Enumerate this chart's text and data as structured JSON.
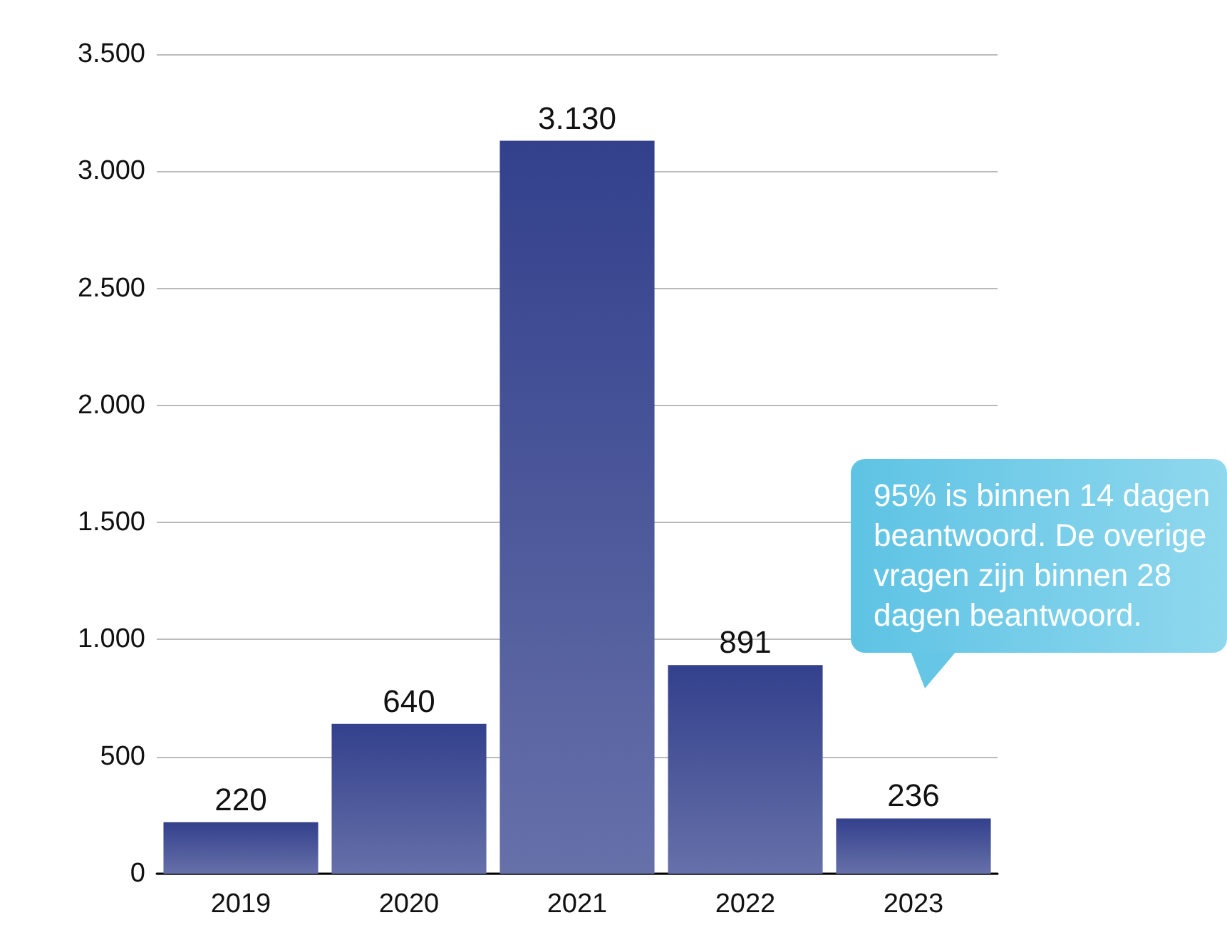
{
  "chart_data": {
    "type": "bar",
    "categories": [
      "2019",
      "2020",
      "2021",
      "2022",
      "2023"
    ],
    "values": [
      220,
      640,
      3130,
      891,
      236
    ],
    "value_labels": [
      "220",
      "640",
      "3.130",
      "891",
      "236"
    ],
    "color": "#33408c",
    "ylim": [
      0,
      3500
    ],
    "yticks": [
      {
        "value": 0,
        "label": "0"
      },
      {
        "value": 500,
        "label": "500"
      },
      {
        "value": 1000,
        "label": "1.000"
      },
      {
        "value": 1500,
        "label": "1.500"
      },
      {
        "value": 2000,
        "label": "2.000"
      },
      {
        "value": 2500,
        "label": "2.500"
      },
      {
        "value": 3000,
        "label": "3.000"
      },
      {
        "value": 3500,
        "label": "3.500"
      }
    ],
    "grid": "y",
    "annotations": [
      "95% is binnen 14 dagen beantwoord. De overige vragen zijn binnen 28 dagen beantwoord."
    ]
  }
}
